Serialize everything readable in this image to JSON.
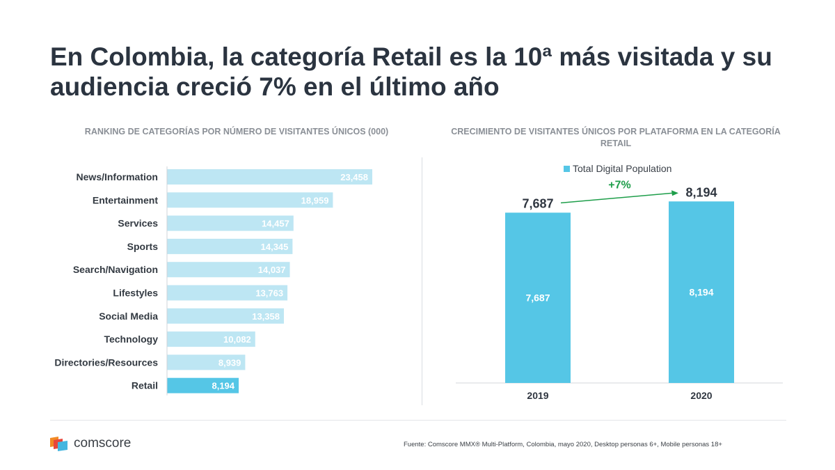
{
  "title": "En Colombia, la categoría Retail es la 10ª más visitada y su audiencia creció 7% en el último año",
  "chart_data": [
    {
      "type": "bar",
      "orientation": "horizontal",
      "title": "RANKING DE CATEGORÍAS POR NÚMERO DE VISITANTES ÚNICOS (000)",
      "categories": [
        "News/Information",
        "Entertainment",
        "Services",
        "Sports",
        "Search/Navigation",
        "Lifestyles",
        "Social Media",
        "Technology",
        "Directories/Resources",
        "Retail"
      ],
      "values": [
        23458,
        18959,
        14457,
        14345,
        14037,
        13763,
        13358,
        10082,
        8939,
        8194
      ],
      "value_labels": [
        "23,458",
        "18,959",
        "14,457",
        "14,345",
        "14,037",
        "13,763",
        "13,358",
        "10,082",
        "8,939",
        "8,194"
      ],
      "highlight": "Retail",
      "xlim": [
        0,
        23458
      ],
      "colors": {
        "default": "#bde6f3",
        "highlight": "#55c6e6"
      }
    },
    {
      "type": "bar",
      "title": "CRECIMIENTO DE VISITANTES ÚNICOS POR PLATAFORMA EN LA CATEGORÍA RETAIL",
      "categories": [
        "2019",
        "2020"
      ],
      "series": [
        {
          "name": "Total Digital Population",
          "values": [
            7687,
            8194
          ],
          "labels": [
            "7,687",
            "8,194"
          ]
        }
      ],
      "ylim": [
        0,
        8800
      ],
      "annotation": "+7%",
      "colors": {
        "bar": "#55c6e6",
        "growth": "#1e9e4a"
      }
    }
  ],
  "footer": {
    "brand": "comscore",
    "source": "Fuente: Comscore MMX® Multi-Platform, Colombia, mayo 2020, Desktop personas 6+, Mobile personas 18+"
  }
}
